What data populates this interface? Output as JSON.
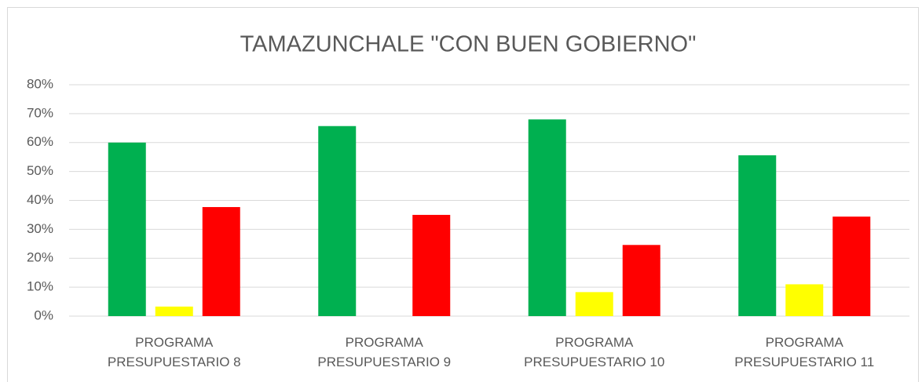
{
  "chart_data": {
    "type": "bar",
    "title": "TAMAZUNCHALE \"CON BUEN GOBIERNO\"",
    "categories": [
      "PROGRAMA PRESUPUESTARIO 8",
      "PROGRAMA PRESUPUESTARIO 9",
      "PROGRAMA PRESUPUESTARIO 10",
      "PROGRAMA PRESUPUESTARIO 11"
    ],
    "series": [
      {
        "color": "#00b050",
        "values": [
          60,
          65.7,
          68,
          55.6
        ]
      },
      {
        "color": "#ffff00",
        "values": [
          3.3,
          0,
          8.3,
          11
        ]
      },
      {
        "color": "#ff0000",
        "values": [
          37.7,
          35,
          24.6,
          34.4
        ]
      }
    ],
    "ylim": [
      0,
      80
    ],
    "yticks": [
      {
        "value": 0,
        "label": "0%"
      },
      {
        "value": 10,
        "label": "10%"
      },
      {
        "value": 20,
        "label": "20%"
      },
      {
        "value": 30,
        "label": "30%"
      },
      {
        "value": 40,
        "label": "40%"
      },
      {
        "value": 50,
        "label": "50%"
      },
      {
        "value": 60,
        "label": "60%"
      },
      {
        "value": 70,
        "label": "70%"
      },
      {
        "value": 80,
        "label": "80%"
      }
    ],
    "grid": true
  }
}
